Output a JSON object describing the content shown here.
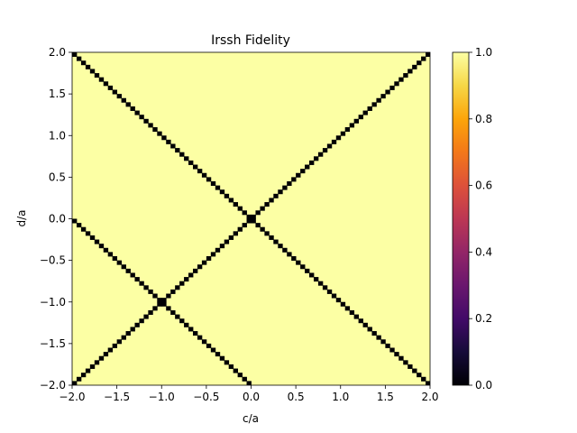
{
  "chart_data": {
    "type": "heatmap",
    "title": "Irssh Fidelity",
    "xlabel": "c/a",
    "ylabel": "d/a",
    "xlim": [
      -2.0,
      2.0
    ],
    "ylim": [
      -2.0,
      2.0
    ],
    "x_ticks": [
      -2.0,
      -1.5,
      -1.0,
      -0.5,
      0.0,
      0.5,
      1.0,
      1.5,
      2.0
    ],
    "x_tick_labels": [
      "−2.0",
      "−1.5",
      "−1.0",
      "−0.5",
      "0.0",
      "0.5",
      "1.0",
      "1.5",
      "2.0"
    ],
    "y_ticks": [
      2.0,
      1.5,
      1.0,
      0.5,
      0.0,
      -0.5,
      -1.0,
      -1.5,
      -2.0
    ],
    "y_tick_labels": [
      "2.0",
      "1.5",
      "1.0",
      "0.5",
      "0.0",
      "−0.5",
      "−1.0",
      "−1.5",
      "−2.0"
    ],
    "grid_resolution": 80,
    "colormap": "inferno",
    "background_value": 1.0,
    "low_fidelity_lines": [
      {
        "slope": 1,
        "intercept": 0,
        "min_value": 0.0,
        "edge_value": 0.5
      },
      {
        "slope": -1,
        "intercept": 0,
        "min_value": 0.0,
        "edge_value": 0.5
      },
      {
        "slope": -1,
        "intercept": -2,
        "min_value": 0.0,
        "edge_value": 0.5
      }
    ],
    "colorbar": {
      "min": 0.0,
      "max": 1.0,
      "ticks": [
        1.0,
        0.8,
        0.6,
        0.4,
        0.2,
        0.0
      ],
      "tick_labels": [
        "1.0",
        "0.8",
        "0.6",
        "0.4",
        "0.2",
        "0.0"
      ]
    }
  }
}
